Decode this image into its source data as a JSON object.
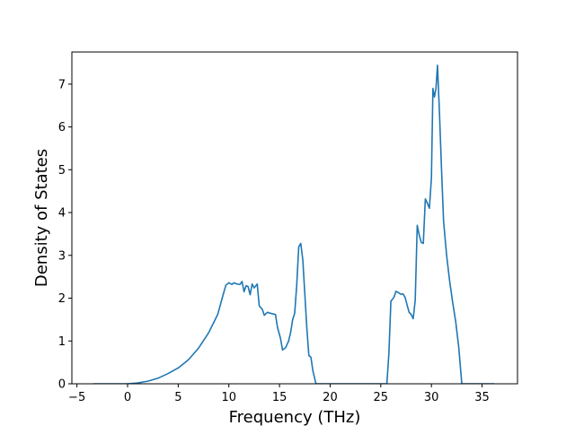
{
  "chart_data": {
    "type": "line",
    "title": "",
    "xlabel": "Frequency (THz)",
    "ylabel": "Density of States",
    "xlim": [
      -5.5,
      38.5
    ],
    "ylim": [
      0,
      7.75
    ],
    "xticks": [
      -5,
      0,
      5,
      10,
      15,
      20,
      25,
      30,
      35
    ],
    "yticks": [
      0,
      1,
      2,
      3,
      4,
      5,
      6,
      7
    ],
    "grid": false,
    "legend": "none",
    "series": [
      {
        "color": "#1f77b4",
        "points": [
          [
            -3.4,
            0
          ],
          [
            0,
            0
          ],
          [
            1,
            0.02
          ],
          [
            2,
            0.06
          ],
          [
            3,
            0.13
          ],
          [
            4,
            0.24
          ],
          [
            5,
            0.37
          ],
          [
            6,
            0.56
          ],
          [
            7,
            0.83
          ],
          [
            8,
            1.19
          ],
          [
            8.9,
            1.62
          ],
          [
            9.4,
            2.05
          ],
          [
            9.7,
            2.3
          ],
          [
            10.0,
            2.36
          ],
          [
            10.3,
            2.32
          ],
          [
            10.5,
            2.36
          ],
          [
            10.8,
            2.33
          ],
          [
            11.1,
            2.32
          ],
          [
            11.3,
            2.39
          ],
          [
            11.5,
            2.15
          ],
          [
            11.7,
            2.29
          ],
          [
            11.9,
            2.27
          ],
          [
            12.1,
            2.08
          ],
          [
            12.3,
            2.33
          ],
          [
            12.5,
            2.24
          ],
          [
            12.8,
            2.33
          ],
          [
            13.0,
            1.82
          ],
          [
            13.3,
            1.74
          ],
          [
            13.5,
            1.6
          ],
          [
            13.8,
            1.67
          ],
          [
            14.2,
            1.64
          ],
          [
            14.6,
            1.62
          ],
          [
            14.8,
            1.32
          ],
          [
            15.1,
            1.06
          ],
          [
            15.3,
            0.79
          ],
          [
            15.6,
            0.84
          ],
          [
            15.9,
            1.0
          ],
          [
            16.1,
            1.2
          ],
          [
            16.3,
            1.5
          ],
          [
            16.5,
            1.65
          ],
          [
            16.7,
            2.3
          ],
          [
            16.9,
            3.2
          ],
          [
            17.1,
            3.28
          ],
          [
            17.3,
            2.9
          ],
          [
            17.5,
            2.1
          ],
          [
            17.7,
            1.3
          ],
          [
            17.9,
            0.66
          ],
          [
            18.1,
            0.62
          ],
          [
            18.3,
            0.3
          ],
          [
            18.6,
            0
          ],
          [
            25.6,
            0
          ],
          [
            25.8,
            0.7
          ],
          [
            26.0,
            1.93
          ],
          [
            26.3,
            2.02
          ],
          [
            26.5,
            2.16
          ],
          [
            26.8,
            2.12
          ],
          [
            27.0,
            2.09
          ],
          [
            27.2,
            2.1
          ],
          [
            27.4,
            2.02
          ],
          [
            27.6,
            1.84
          ],
          [
            27.8,
            1.67
          ],
          [
            28.0,
            1.62
          ],
          [
            28.2,
            1.52
          ],
          [
            28.4,
            1.95
          ],
          [
            28.6,
            3.7
          ],
          [
            28.8,
            3.47
          ],
          [
            29.0,
            3.3
          ],
          [
            29.2,
            3.28
          ],
          [
            29.4,
            4.32
          ],
          [
            29.6,
            4.22
          ],
          [
            29.8,
            4.1
          ],
          [
            30.0,
            4.8
          ],
          [
            30.15,
            6.9
          ],
          [
            30.3,
            6.7
          ],
          [
            30.45,
            6.9
          ],
          [
            30.6,
            7.44
          ],
          [
            30.8,
            6.3
          ],
          [
            31.0,
            5.0
          ],
          [
            31.2,
            3.8
          ],
          [
            31.5,
            3.0
          ],
          [
            31.8,
            2.4
          ],
          [
            32.1,
            1.9
          ],
          [
            32.4,
            1.45
          ],
          [
            32.7,
            0.85
          ],
          [
            33.0,
            0
          ],
          [
            36.2,
            0
          ]
        ]
      }
    ]
  }
}
